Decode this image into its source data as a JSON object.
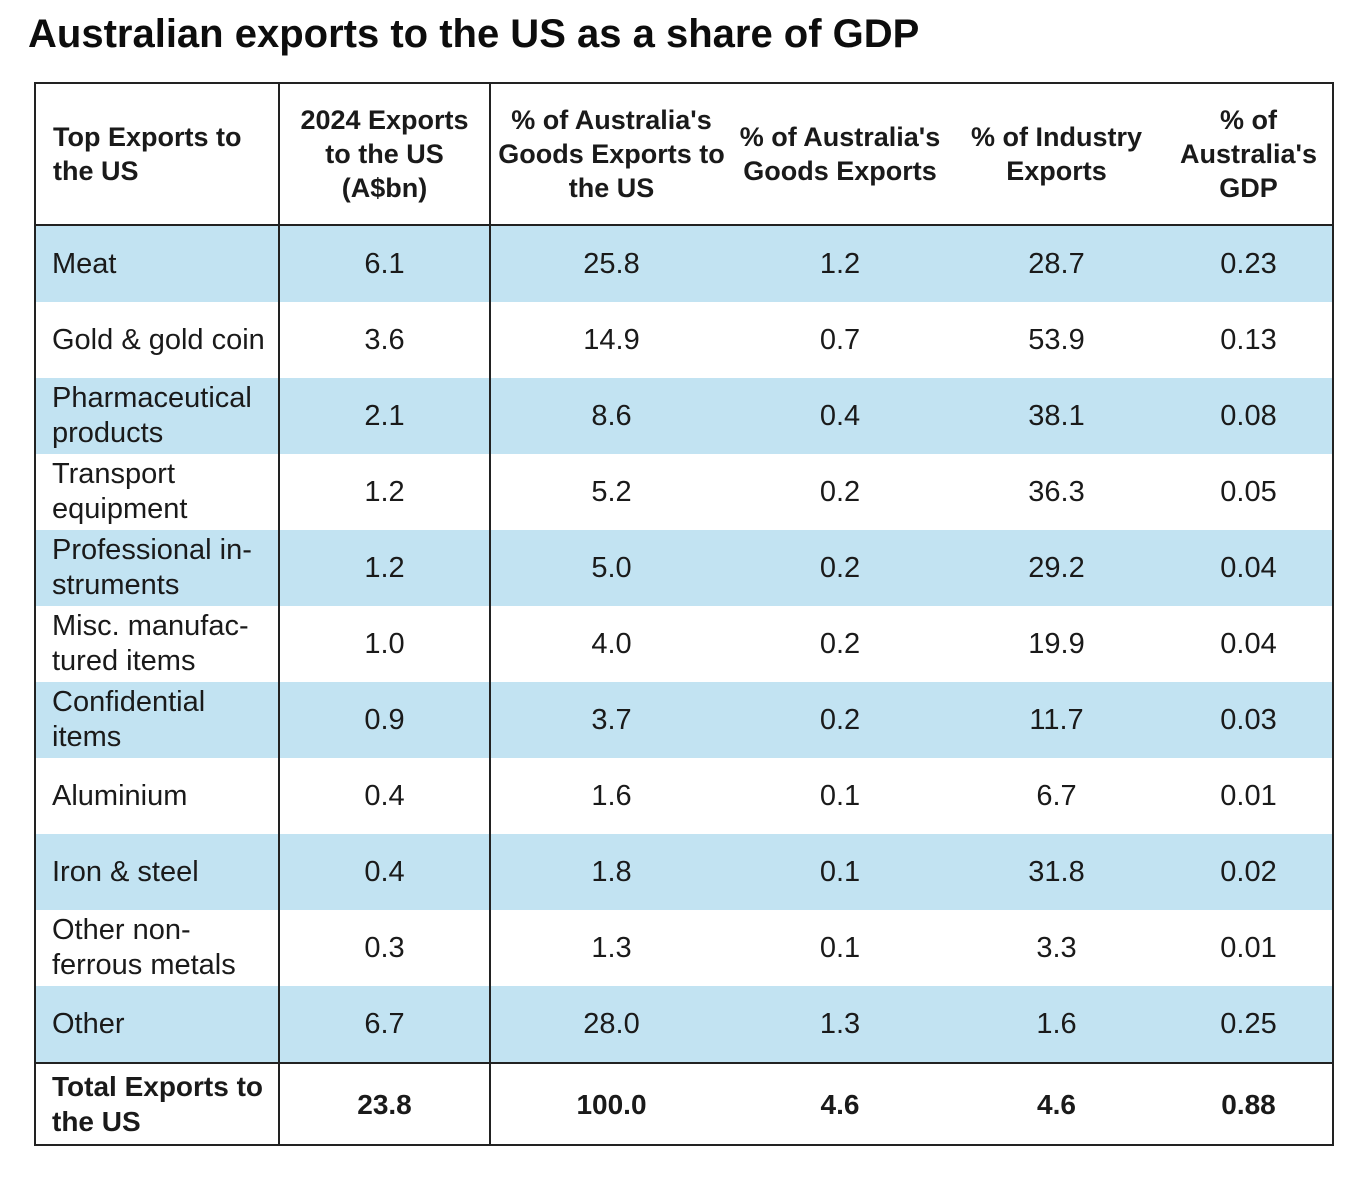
{
  "title": "Australian exports to the US as a share of GDP",
  "headers": [
    "Top Exports to the US",
    "2024 Exports to the US (A$bn)",
    "% of Australia's Goods Exports to the US",
    "% of Australia's Goods Exports",
    "% of Industry Exports",
    "% of Australia's GDP"
  ],
  "rows": [
    {
      "name": "Meat",
      "v": [
        "6.1",
        "25.8",
        "1.2",
        "28.7",
        "0.23"
      ]
    },
    {
      "name": "Gold & gold coin",
      "v": [
        "3.6",
        "14.9",
        "0.7",
        "53.9",
        "0.13"
      ]
    },
    {
      "name": "Pharmaceutical products",
      "v": [
        "2.1",
        "8.6",
        "0.4",
        "38.1",
        "0.08"
      ]
    },
    {
      "name": "Transport equipment",
      "v": [
        "1.2",
        "5.2",
        "0.2",
        "36.3",
        "0.05"
      ]
    },
    {
      "name": "Professional in-struments",
      "v": [
        "1.2",
        "5.0",
        "0.2",
        "29.2",
        "0.04"
      ]
    },
    {
      "name": "Misc. manufac-tured items",
      "v": [
        "1.0",
        "4.0",
        "0.2",
        "19.9",
        "0.04"
      ]
    },
    {
      "name": "Confidential items",
      "v": [
        "0.9",
        "3.7",
        "0.2",
        "11.7",
        "0.03"
      ]
    },
    {
      "name": "Aluminium",
      "v": [
        "0.4",
        "1.6",
        "0.1",
        "6.7",
        "0.01"
      ]
    },
    {
      "name": "Iron & steel",
      "v": [
        "0.4",
        "1.8",
        "0.1",
        "31.8",
        "0.02"
      ]
    },
    {
      "name": "Other non-ferrous metals",
      "v": [
        "0.3",
        "1.3",
        "0.1",
        "3.3",
        "0.01"
      ]
    },
    {
      "name": "Other",
      "v": [
        "6.7",
        "28.0",
        "1.3",
        "1.6",
        "0.25"
      ]
    }
  ],
  "total": {
    "name": "Total Exports to the US",
    "v": [
      "23.8",
      "100.0",
      "4.6",
      "4.6",
      "0.88"
    ]
  },
  "colors": {
    "band": "#c2e3f2",
    "border": "#222222"
  }
}
